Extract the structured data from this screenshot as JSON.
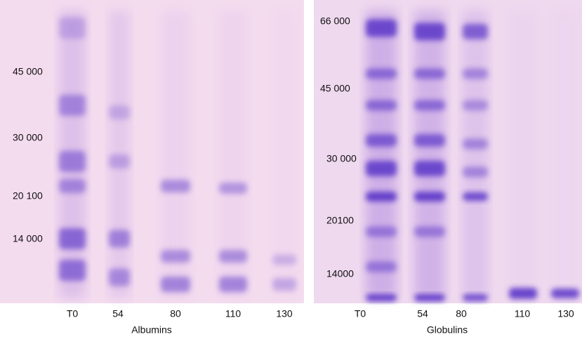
{
  "panels": [
    {
      "markers": [
        "45 000",
        "30 000",
        "20 100",
        "14 000"
      ],
      "lanes": [
        "T0",
        "54",
        "80",
        "110",
        "130"
      ],
      "caption": "Albumins"
    },
    {
      "markers": [
        "66 000",
        "45 000",
        "30 000",
        "20100",
        "14000"
      ],
      "lanes": [
        "T0",
        "54",
        "80",
        "110",
        "130"
      ],
      "caption": "Globulins"
    }
  ]
}
